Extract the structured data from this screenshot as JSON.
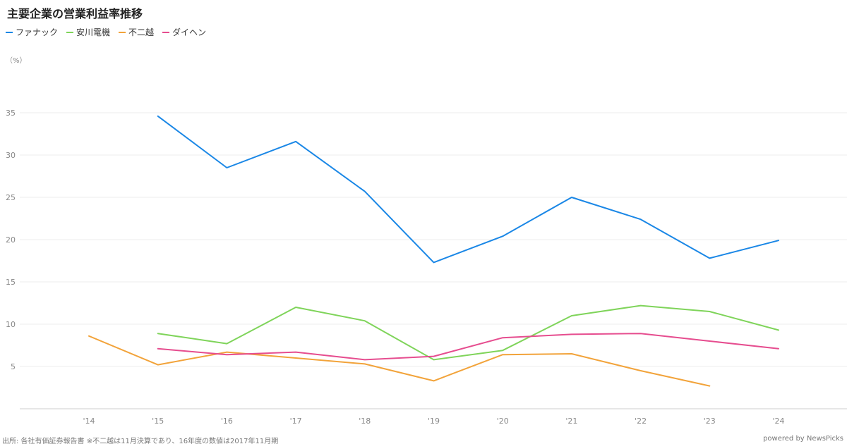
{
  "chart_data": {
    "type": "line",
    "title": "主要企業の営業利益率推移",
    "unit": "（%）",
    "categories": [
      "'14",
      "'15",
      "'16",
      "'17",
      "'18",
      "'19",
      "'20",
      "'21",
      "'22",
      "'23",
      "'24"
    ],
    "ylim": [
      0,
      38
    ],
    "yticks": [
      5,
      10,
      15,
      20,
      25,
      30,
      35
    ],
    "grid": true,
    "legend_position": "top-left",
    "series": [
      {
        "name": "ファナック",
        "color": "#1a87e6",
        "values": [
          null,
          34.6,
          28.5,
          31.6,
          25.7,
          17.3,
          20.4,
          25.0,
          22.4,
          17.8,
          19.9
        ]
      },
      {
        "name": "安川電機",
        "color": "#7fd45a",
        "values": [
          null,
          8.9,
          7.7,
          12.0,
          10.4,
          5.8,
          6.9,
          11.0,
          12.2,
          11.5,
          9.3
        ]
      },
      {
        "name": "不二越",
        "color": "#f2a33a",
        "values": [
          8.6,
          5.2,
          6.7,
          6.0,
          5.3,
          3.3,
          6.4,
          6.5,
          4.5,
          2.7,
          null
        ]
      },
      {
        "name": "ダイヘン",
        "color": "#e64d8f",
        "values": [
          null,
          7.1,
          6.4,
          6.7,
          5.8,
          6.2,
          8.4,
          8.8,
          8.9,
          8.0,
          7.1
        ]
      }
    ]
  },
  "footer": {
    "source": "出所: 各社有価証券報告書 ※不二越は11月決算であり、16年度の数値は2017年11月期",
    "powered_by": "powered by NewsPicks"
  }
}
